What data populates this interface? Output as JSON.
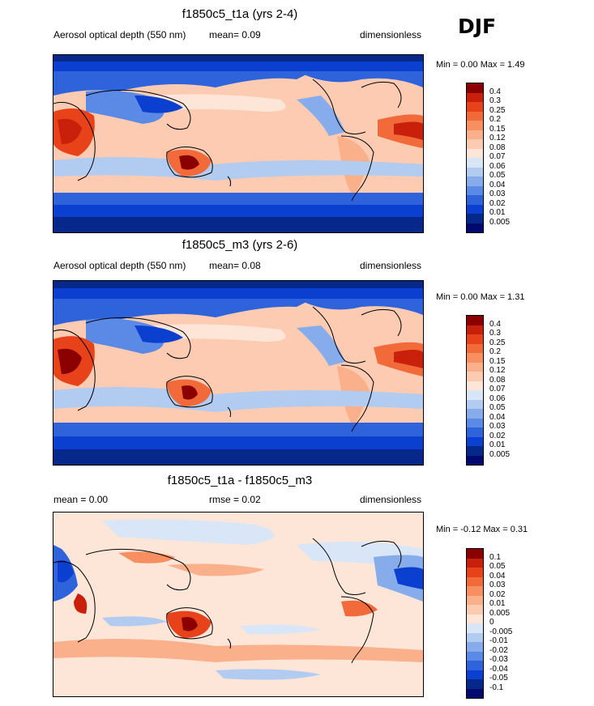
{
  "season": "DJF",
  "panels": [
    {
      "title": "f1850c5_t1a (yrs 2-4)",
      "left_label": "Aerosol optical depth (550 nm)",
      "mid_label": "mean=   0.09",
      "units": "dimensionless",
      "minmax": "Min =   0.00 Max =   1.49",
      "colorbar": {
        "levels": [
          "0.4",
          "0.3",
          "0.25",
          "0.2",
          "0.15",
          "0.12",
          "0.08",
          "0.07",
          "0.06",
          "0.05",
          "0.04",
          "0.03",
          "0.02",
          "0.01",
          "0.005"
        ],
        "colors": [
          "#8b0000",
          "#c8200a",
          "#e8421a",
          "#f26a3a",
          "#f78f60",
          "#fab08a",
          "#fccbb2",
          "#fde6d8",
          "#d9e6f7",
          "#b2cbf0",
          "#86aceb",
          "#5a8ae5",
          "#2f63db",
          "#0a3fcf",
          "#05288a",
          "#000a6e"
        ]
      }
    },
    {
      "title": "f1850c5_m3 (yrs 2-6)",
      "left_label": "Aerosol optical depth (550 nm)",
      "mid_label": "mean=   0.08",
      "units": "dimensionless",
      "minmax": "Min =   0.00 Max =   1.31",
      "colorbar": {
        "levels": [
          "0.4",
          "0.3",
          "0.25",
          "0.2",
          "0.15",
          "0.12",
          "0.08",
          "0.07",
          "0.06",
          "0.05",
          "0.04",
          "0.03",
          "0.02",
          "0.01",
          "0.005"
        ],
        "colors": [
          "#8b0000",
          "#c8200a",
          "#e8421a",
          "#f26a3a",
          "#f78f60",
          "#fab08a",
          "#fccbb2",
          "#fde6d8",
          "#d9e6f7",
          "#b2cbf0",
          "#86aceb",
          "#5a8ae5",
          "#2f63db",
          "#0a3fcf",
          "#05288a",
          "#000a6e"
        ]
      }
    },
    {
      "title": "f1850c5_t1a - f1850c5_m3",
      "left_label": "mean =   0.00",
      "mid_label": "rmse =   0.02",
      "units": "dimensionless",
      "minmax": "Min =  -0.12 Max =   0.31",
      "colorbar": {
        "levels": [
          "0.1",
          "0.05",
          "0.04",
          "0.03",
          "0.02",
          "0.01",
          "0.005",
          "0",
          "-0.005",
          "-0.01",
          "-0.02",
          "-0.03",
          "-0.04",
          "-0.05",
          "-0.1"
        ],
        "colors": [
          "#8b0000",
          "#c8200a",
          "#e8421a",
          "#f26a3a",
          "#f78f60",
          "#fab08a",
          "#fccbb2",
          "#fde6d8",
          "#d9e6f7",
          "#b2cbf0",
          "#86aceb",
          "#5a8ae5",
          "#2f63db",
          "#0a3fcf",
          "#05288a",
          "#000a6e"
        ]
      }
    }
  ]
}
